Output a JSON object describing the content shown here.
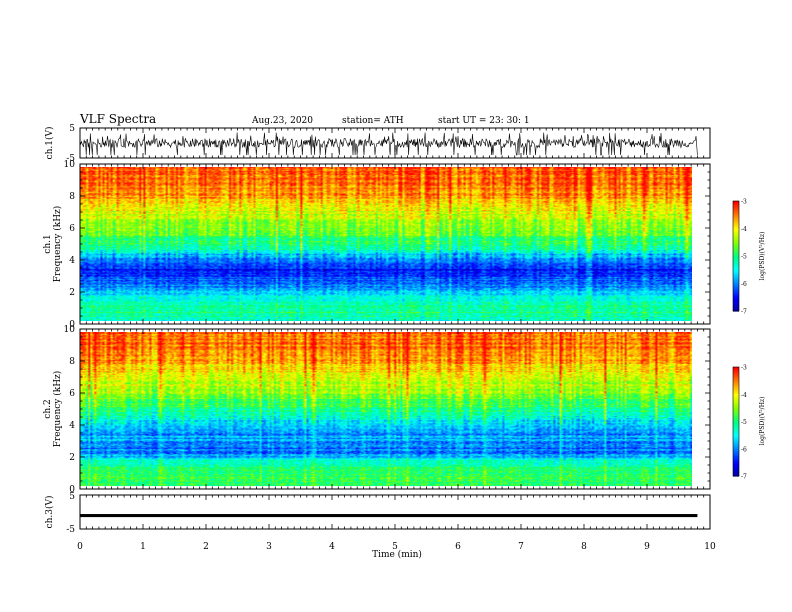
{
  "header": {
    "title": "VLF Spectra",
    "date": "Aug.23, 2020",
    "station": "station= ATH",
    "start_ut": "start UT =   23: 30: 1"
  },
  "colors": {
    "spectrogram_scale": [
      "#00009a",
      "#0000ff",
      "#0080ff",
      "#00ffff",
      "#00ff80",
      "#80ff00",
      "#ffff00",
      "#ff8000",
      "#ff0000"
    ]
  },
  "chart_data": [
    {
      "type": "line",
      "panel": "ch1-waveform",
      "ylabel": "ch.1(V)",
      "ylim": [
        -5,
        5
      ],
      "yticks": [
        "5",
        "-5"
      ],
      "xlim": [
        0,
        10
      ],
      "description_series": "noisy waveform",
      "series": [
        {
          "x": [
            0,
            9.8
          ],
          "y_min": -4,
          "y_max": 3.5
        }
      ]
    },
    {
      "type": "heatmap",
      "panel": "ch1-spectrogram",
      "ylabel": "Frequency (kHz)",
      "channel_label": "ch.1",
      "ylim": [
        0,
        10
      ],
      "yticks": [
        "0",
        "2",
        "4",
        "6",
        "8",
        "10"
      ],
      "xlim": [
        0,
        9.8
      ],
      "colorbar": {
        "label": "log(PSD)(V²/Hz)",
        "range": [
          -7,
          -3
        ],
        "ticks": [
          "-3",
          "-4",
          "-5",
          "-6",
          "-7"
        ]
      },
      "freq_profile_logpsd": [
        [
          0,
          -5.3
        ],
        [
          0.5,
          -5.0
        ],
        [
          1,
          -5.2
        ],
        [
          1.5,
          -5.4
        ],
        [
          2,
          -5.8
        ],
        [
          2.5,
          -6.1
        ],
        [
          3,
          -6.3
        ],
        [
          3.5,
          -6.4
        ],
        [
          4,
          -6.1
        ],
        [
          4.5,
          -5.4
        ],
        [
          5,
          -5.0
        ],
        [
          5.5,
          -4.8
        ],
        [
          6,
          -4.6
        ],
        [
          7,
          -4.2
        ],
        [
          8,
          -3.7
        ],
        [
          9,
          -3.5
        ],
        [
          10,
          -3.4
        ]
      ]
    },
    {
      "type": "heatmap",
      "panel": "ch2-spectrogram",
      "ylabel": "Frequency (kHz)",
      "channel_label": "ch.2",
      "ylim": [
        0,
        10
      ],
      "yticks": [
        "0",
        "2",
        "4",
        "6",
        "8",
        "10"
      ],
      "xlim": [
        0,
        9.8
      ],
      "colorbar": {
        "label": "log(PSD)(V²/Hz)",
        "range": [
          -7,
          -3
        ],
        "ticks": [
          "-3",
          "-4",
          "-5",
          "-6",
          "-7"
        ]
      },
      "freq_profile_logpsd": [
        [
          0,
          -4.9
        ],
        [
          0.5,
          -4.8
        ],
        [
          1,
          -5.0
        ],
        [
          1.5,
          -5.2
        ],
        [
          2,
          -5.9
        ],
        [
          2.5,
          -6.1
        ],
        [
          3,
          -5.8
        ],
        [
          3.5,
          -6.0
        ],
        [
          4,
          -5.7
        ],
        [
          4.5,
          -5.3
        ],
        [
          5,
          -5.0
        ],
        [
          5.5,
          -4.7
        ],
        [
          6,
          -4.5
        ],
        [
          7,
          -4.1
        ],
        [
          8,
          -3.7
        ],
        [
          9,
          -3.5
        ],
        [
          10,
          -3.4
        ]
      ]
    },
    {
      "type": "line",
      "panel": "ch3-waveform",
      "ylabel": "ch.3(V)",
      "ylim": [
        -5,
        5
      ],
      "yticks": [
        "5",
        "-5"
      ],
      "xlim": [
        0,
        10
      ],
      "series": [
        {
          "x": [
            0,
            9.8
          ],
          "y_min": -1.5,
          "y_max": -0.6
        }
      ]
    }
  ],
  "x_axis": {
    "label": "Time (min)",
    "ticks": [
      "0",
      "1",
      "2",
      "3",
      "4",
      "5",
      "6",
      "7",
      "8",
      "9",
      "10"
    ]
  }
}
